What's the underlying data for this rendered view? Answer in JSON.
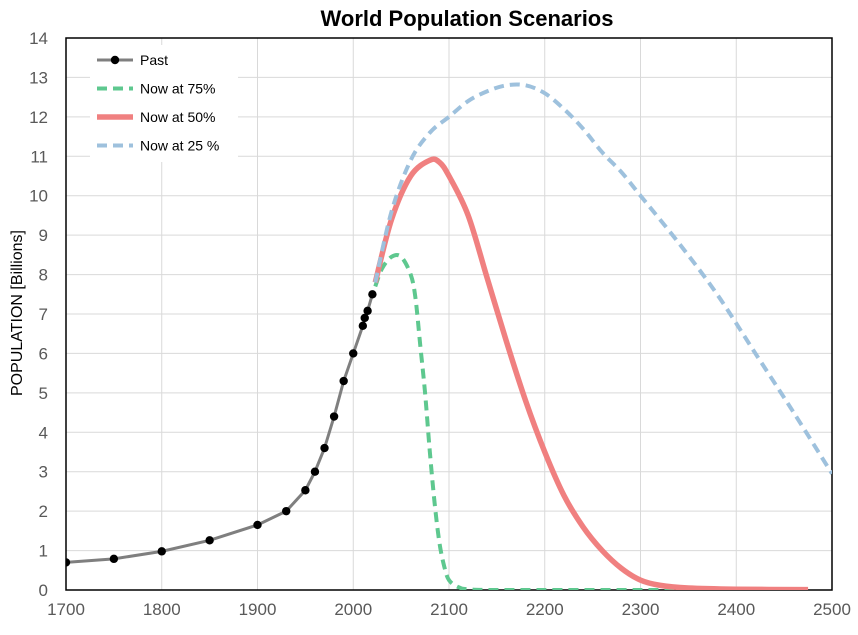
{
  "chart_data": {
    "type": "line",
    "title": "World Population Scenarios",
    "xlabel": "",
    "ylabel": "POPULATION [Billions]",
    "xlim": [
      1700,
      2500
    ],
    "ylim": [
      0,
      14
    ],
    "x_ticks": [
      1700,
      1800,
      1900,
      2000,
      2100,
      2200,
      2300,
      2400,
      2500
    ],
    "y_ticks": [
      0,
      1,
      2,
      3,
      4,
      5,
      6,
      7,
      8,
      9,
      10,
      11,
      12,
      13,
      14
    ],
    "grid": true,
    "legend_position": "top-left",
    "series": [
      {
        "name": "Past",
        "color": "#7f7f7f",
        "marker_color": "#000000",
        "style": "solid-markers",
        "points": [
          [
            1700,
            0.7
          ],
          [
            1750,
            0.79
          ],
          [
            1800,
            0.98
          ],
          [
            1850,
            1.26
          ],
          [
            1900,
            1.65
          ],
          [
            1930,
            2.0
          ],
          [
            1950,
            2.53
          ],
          [
            1960,
            3.0
          ],
          [
            1970,
            3.6
          ],
          [
            1980,
            4.4
          ],
          [
            1990,
            5.3
          ],
          [
            2000,
            6.0
          ],
          [
            2010,
            6.7
          ],
          [
            2012,
            6.9
          ],
          [
            2015,
            7.08
          ],
          [
            2020,
            7.5
          ]
        ]
      },
      {
        "name": "Now at 75%",
        "color": "#5ec88f",
        "style": "dashed",
        "points": [
          [
            2023,
            7.7
          ],
          [
            2030,
            8.15
          ],
          [
            2040,
            8.45
          ],
          [
            2050,
            8.45
          ],
          [
            2060,
            8.0
          ],
          [
            2065,
            7.4
          ],
          [
            2070,
            6.2
          ],
          [
            2075,
            5.0
          ],
          [
            2080,
            3.5
          ],
          [
            2085,
            2.2
          ],
          [
            2090,
            1.2
          ],
          [
            2095,
            0.6
          ],
          [
            2100,
            0.25
          ],
          [
            2110,
            0.07
          ],
          [
            2120,
            0.02
          ],
          [
            2150,
            0.0
          ],
          [
            2300,
            0.0
          ],
          [
            2475,
            0.0
          ]
        ]
      },
      {
        "name": "Now at 50%",
        "color": "#f08080",
        "style": "solid",
        "points": [
          [
            2023,
            7.8
          ],
          [
            2040,
            9.4
          ],
          [
            2060,
            10.5
          ],
          [
            2080,
            10.9
          ],
          [
            2090,
            10.85
          ],
          [
            2100,
            10.5
          ],
          [
            2120,
            9.5
          ],
          [
            2140,
            7.9
          ],
          [
            2160,
            6.3
          ],
          [
            2180,
            4.8
          ],
          [
            2200,
            3.5
          ],
          [
            2220,
            2.4
          ],
          [
            2240,
            1.6
          ],
          [
            2260,
            1.0
          ],
          [
            2280,
            0.55
          ],
          [
            2300,
            0.25
          ],
          [
            2320,
            0.12
          ],
          [
            2350,
            0.05
          ],
          [
            2400,
            0.02
          ],
          [
            2475,
            0.01
          ]
        ]
      },
      {
        "name": "Now at 25 %",
        "color": "#9ec1dd",
        "style": "dashed",
        "points": [
          [
            2023,
            7.8
          ],
          [
            2040,
            9.6
          ],
          [
            2060,
            10.9
          ],
          [
            2080,
            11.6
          ],
          [
            2100,
            12.0
          ],
          [
            2120,
            12.4
          ],
          [
            2140,
            12.65
          ],
          [
            2160,
            12.8
          ],
          [
            2180,
            12.8
          ],
          [
            2200,
            12.6
          ],
          [
            2220,
            12.2
          ],
          [
            2240,
            11.7
          ],
          [
            2260,
            11.1
          ],
          [
            2280,
            10.6
          ],
          [
            2300,
            10.0
          ],
          [
            2340,
            8.8
          ],
          [
            2380,
            7.5
          ],
          [
            2420,
            6.0
          ],
          [
            2460,
            4.5
          ],
          [
            2500,
            2.95
          ]
        ]
      }
    ]
  }
}
